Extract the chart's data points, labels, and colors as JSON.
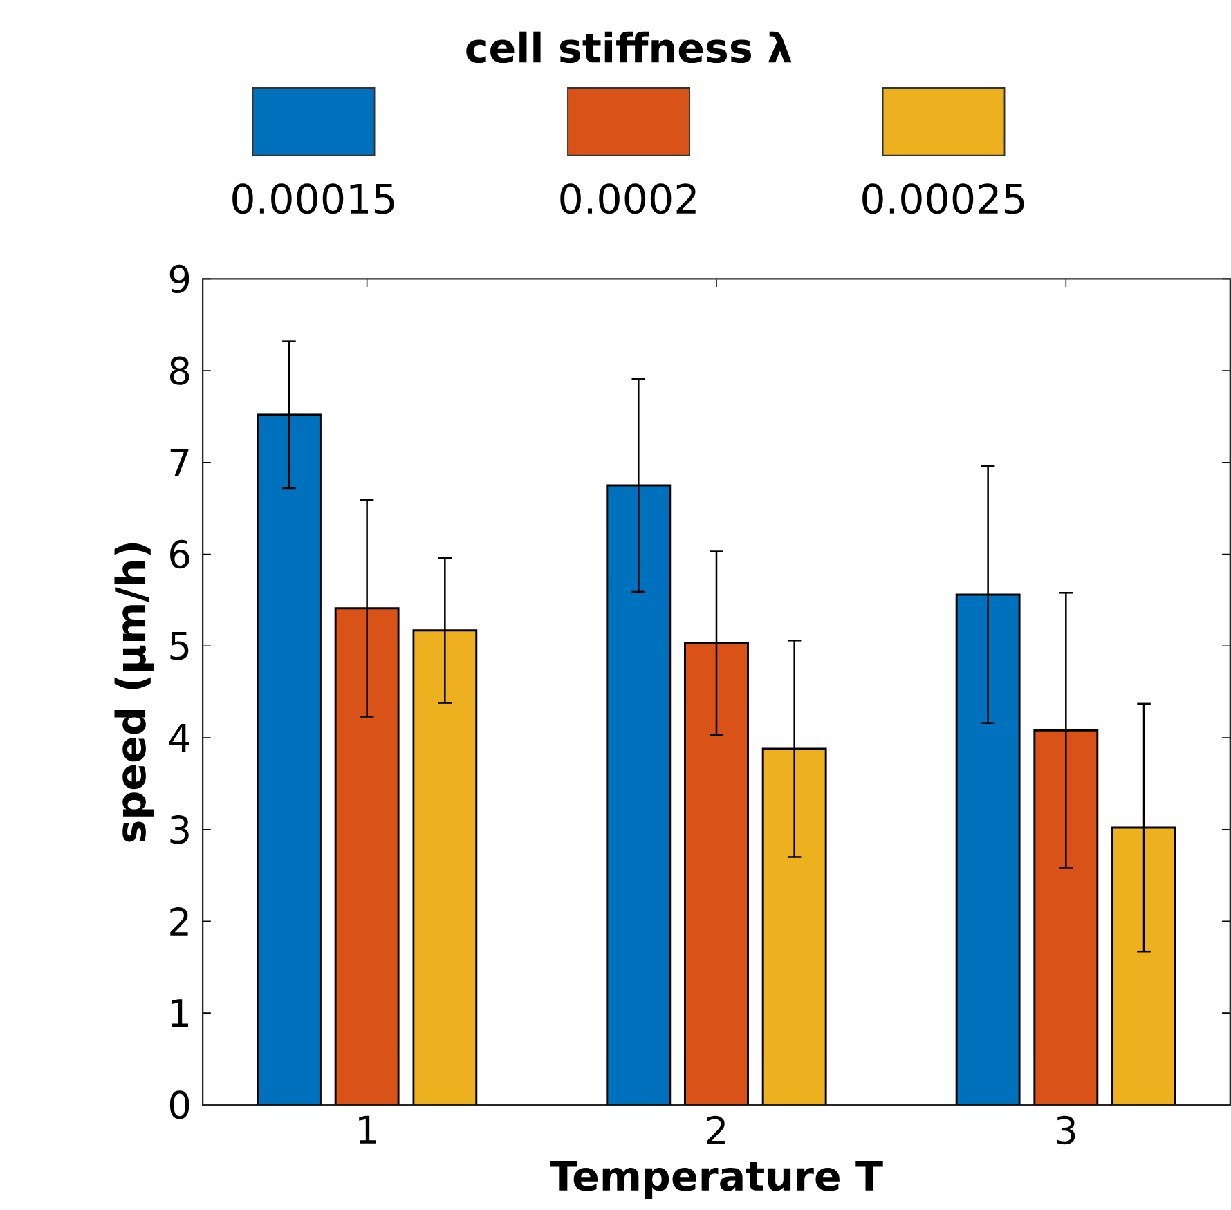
{
  "chart_data": {
    "type": "bar",
    "xlabel": "Temperature T",
    "ylabel": "speed (µm/h)",
    "legend_title": "cell stiffness λ",
    "categories": [
      "1",
      "2",
      "3"
    ],
    "series": [
      {
        "name": "0.00015",
        "color": "#0072bd",
        "values": [
          7.52,
          6.75,
          5.56
        ],
        "errors": [
          0.8,
          1.16,
          1.4
        ]
      },
      {
        "name": "0.0002",
        "color": "#d95319",
        "values": [
          5.41,
          5.03,
          4.08
        ],
        "errors": [
          1.18,
          1.0,
          1.5
        ]
      },
      {
        "name": "0.00025",
        "color": "#edb120",
        "values": [
          5.17,
          3.88,
          3.02
        ],
        "errors": [
          0.79,
          1.18,
          1.35
        ]
      }
    ],
    "ylim": [
      0,
      9
    ],
    "yticks": [
      0,
      1,
      2,
      3,
      4,
      5,
      6,
      7,
      8,
      9
    ],
    "legend": "top",
    "grid": false
  }
}
